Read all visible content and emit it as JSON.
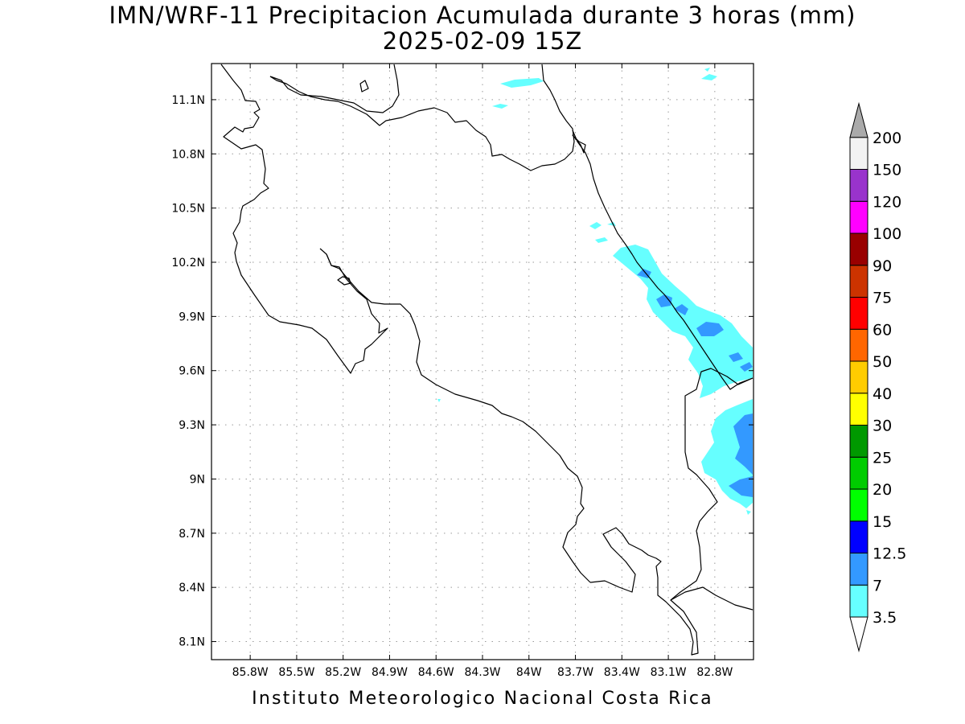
{
  "title": {
    "line1": "IMN/WRF-11 Precipitacion Acumulada durante 3 horas (mm)",
    "line2": "2025-02-09 15Z"
  },
  "footer": "Instituto Meteorologico Nacional Costa Rica",
  "map": {
    "lon_range": [
      -86.05,
      -82.55
    ],
    "lat_range": [
      8.0,
      11.3
    ],
    "x_ticks": [
      {
        "lon": -85.8,
        "label": "85.8W"
      },
      {
        "lon": -85.5,
        "label": "85.5W"
      },
      {
        "lon": -85.2,
        "label": "85.2W"
      },
      {
        "lon": -84.9,
        "label": "84.9W"
      },
      {
        "lon": -84.6,
        "label": "84.6W"
      },
      {
        "lon": -84.3,
        "label": "84.3W"
      },
      {
        "lon": -84.0,
        "label": "84W"
      },
      {
        "lon": -83.7,
        "label": "83.7W"
      },
      {
        "lon": -83.4,
        "label": "83.4W"
      },
      {
        "lon": -83.1,
        "label": "83.1W"
      },
      {
        "lon": -82.8,
        "label": "82.8W"
      }
    ],
    "y_ticks": [
      {
        "lat": 11.1,
        "label": "11.1N"
      },
      {
        "lat": 10.8,
        "label": "10.8N"
      },
      {
        "lat": 10.5,
        "label": "10.5N"
      },
      {
        "lat": 10.2,
        "label": "10.2N"
      },
      {
        "lat": 9.9,
        "label": "9.9N"
      },
      {
        "lat": 9.6,
        "label": "9.6N"
      },
      {
        "lat": 9.3,
        "label": "9.3N"
      },
      {
        "lat": 9.0,
        "label": "9N"
      },
      {
        "lat": 8.7,
        "label": "8.7N"
      },
      {
        "lat": 8.4,
        "label": "8.4N"
      },
      {
        "lat": 8.1,
        "label": "8.1N"
      }
    ],
    "grid": "dotted"
  },
  "colorbar": {
    "levels": [
      {
        "label": "3.5",
        "color": "#66ffff"
      },
      {
        "label": "7",
        "color": "#3399ff"
      },
      {
        "label": "12.5",
        "color": "#0000ff"
      },
      {
        "label": "15",
        "color": "#00ff00"
      },
      {
        "label": "20",
        "color": "#00cc00"
      },
      {
        "label": "25",
        "color": "#009900"
      },
      {
        "label": "30",
        "color": "#ffff00"
      },
      {
        "label": "40",
        "color": "#ffcc00"
      },
      {
        "label": "50",
        "color": "#ff6600"
      },
      {
        "label": "60",
        "color": "#ff0000"
      },
      {
        "label": "75",
        "color": "#cc3300"
      },
      {
        "label": "90",
        "color": "#990000"
      },
      {
        "label": "100",
        "color": "#ff00ff"
      },
      {
        "label": "120",
        "color": "#9933cc"
      },
      {
        "label": "150",
        "color": "#f2f2f2"
      },
      {
        "label": "200",
        "color": "#aaaaaa"
      }
    ],
    "below_min_color": "#ffffff",
    "above_max_color": "#aaaaaa"
  }
}
